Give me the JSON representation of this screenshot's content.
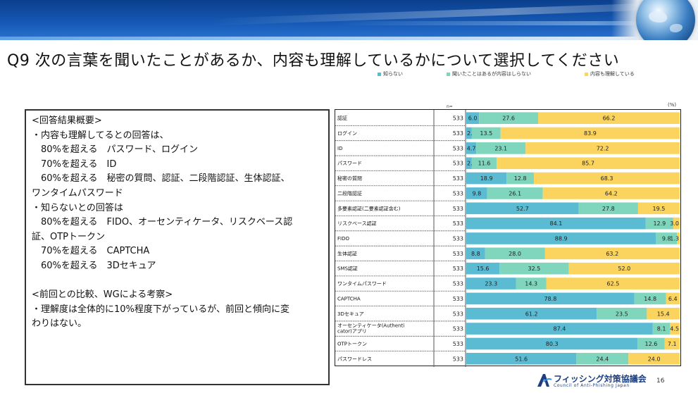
{
  "title": "Q9 次の言葉を聞いたことがあるか、内容も理解しているかについて選択してください",
  "summary": {
    "lines": [
      "<回答結果概要>",
      "・内容も理解してるとの回答は、",
      "　80%を超える　パスワード、ログイン",
      "　70%を超える　ID",
      "　60%を超える　秘密の質問、認証、二段階認証、生体認証、",
      "ワンタイムパスワード",
      "・知らないとの回答は",
      "　80%を超える　FIDO、オーセンティケータ、リスクベース認",
      "証、OTPトークン",
      "　70%を超える　CAPTCHA",
      "　60%を超える　3Dセキュア",
      "",
      "<前回との比較、WGによる考察>",
      "・理解度は全体的に10%程度下がっているが、前回と傾向に変",
      "わりはない。"
    ]
  },
  "chart_data": {
    "type": "bar",
    "orientation": "horizontal",
    "stacked": true,
    "n_header": "n=",
    "unit_label": "(%)",
    "legend_position": "top-right",
    "series": [
      {
        "name": "知らない",
        "color": "#5bbbd3"
      },
      {
        "name": "聞いたことはあるが内容はしらない",
        "color": "#7fd6bc"
      },
      {
        "name": "内容も理解している",
        "color": "#fad45e"
      }
    ],
    "rows": [
      {
        "label": "認証",
        "n": 533,
        "values": [
          6.0,
          27.6,
          66.2
        ]
      },
      {
        "label": "ログイン",
        "n": 533,
        "values": [
          2.6,
          13.5,
          83.9
        ]
      },
      {
        "label": "ID",
        "n": 533,
        "values": [
          4.7,
          23.1,
          72.2
        ]
      },
      {
        "label": "パスワード",
        "n": 533,
        "values": [
          2.6,
          11.6,
          85.7
        ]
      },
      {
        "label": "秘密の質問",
        "n": 533,
        "values": [
          18.9,
          12.8,
          68.3
        ]
      },
      {
        "label": "二段階認証",
        "n": 533,
        "values": [
          9.8,
          26.1,
          64.2
        ]
      },
      {
        "label": "多要素認証(二要素認証含む)",
        "n": 533,
        "values": [
          52.7,
          27.8,
          19.5
        ]
      },
      {
        "label": "リスクベース認証",
        "n": 533,
        "values": [
          84.1,
          12.9,
          3.0
        ]
      },
      {
        "label": "FIDO",
        "n": 533,
        "values": [
          88.9,
          9.8,
          1.3
        ]
      },
      {
        "label": "生体認証",
        "n": 533,
        "values": [
          8.8,
          28.0,
          63.2
        ]
      },
      {
        "label": "SMS認証",
        "n": 533,
        "values": [
          15.6,
          32.5,
          52.0
        ]
      },
      {
        "label": "ワンタイムパスワード",
        "n": 533,
        "values": [
          23.3,
          14.3,
          62.5
        ]
      },
      {
        "label": "CAPTCHA",
        "n": 533,
        "values": [
          78.8,
          14.8,
          6.4
        ]
      },
      {
        "label": "3Dセキュア",
        "n": 533,
        "values": [
          61.2,
          23.5,
          15.4
        ]
      },
      {
        "label": "オーセンティケータ(Authenticator)アプリ",
        "n": 533,
        "values": [
          87.4,
          8.1,
          4.5
        ]
      },
      {
        "label": "OTPトークン",
        "n": 533,
        "values": [
          80.3,
          12.6,
          7.1
        ]
      },
      {
        "label": "パスワードレス",
        "n": 533,
        "values": [
          51.6,
          24.4,
          24.0
        ]
      }
    ]
  },
  "footer": {
    "org_name_ja": "フィッシング対策協議会",
    "org_name_en": "Council of Anti-Phishing Japan",
    "page_number": "16"
  }
}
